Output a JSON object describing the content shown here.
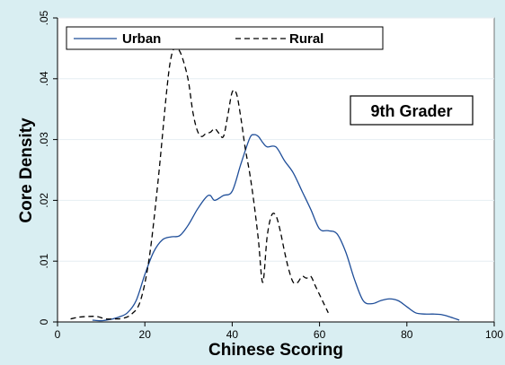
{
  "chart_data": {
    "type": "line",
    "xlabel": "Chinese Scoring",
    "ylabel": "Core Density",
    "xlim": [
      0,
      100
    ],
    "ylim": [
      0,
      0.05
    ],
    "x_ticks": [
      0,
      20,
      40,
      60,
      80,
      100
    ],
    "x_tick_labels": [
      "0",
      "20",
      "40",
      "60",
      "80",
      "100"
    ],
    "y_ticks": [
      0,
      0.01,
      0.02,
      0.03,
      0.04,
      0.05
    ],
    "y_tick_labels": [
      "0",
      ".01",
      ".02",
      ".03",
      ".04",
      ".05"
    ],
    "grid": true,
    "legend_position": "top",
    "annotation": "9th Grader",
    "series": [
      {
        "name": "Urban",
        "style": "solid",
        "color": "#1f4e99",
        "x": [
          8,
          10,
          12,
          14,
          16,
          18,
          20,
          22,
          24,
          26,
          28,
          30,
          32,
          34,
          35,
          36,
          38,
          40,
          42,
          44,
          45,
          46,
          47,
          48,
          50,
          52,
          54,
          56,
          58,
          60,
          62,
          64,
          66,
          68,
          70,
          72,
          74,
          76,
          78,
          80,
          82,
          84,
          86,
          88,
          90,
          92
        ],
        "y": [
          0.0003,
          0.0002,
          0.0004,
          0.0008,
          0.0015,
          0.0035,
          0.0078,
          0.0115,
          0.0135,
          0.014,
          0.0142,
          0.016,
          0.0185,
          0.0205,
          0.0208,
          0.02,
          0.0208,
          0.0215,
          0.026,
          0.0302,
          0.0308,
          0.0305,
          0.0295,
          0.0288,
          0.0288,
          0.0265,
          0.0245,
          0.0215,
          0.0185,
          0.0153,
          0.015,
          0.0145,
          0.0115,
          0.007,
          0.0035,
          0.003,
          0.0035,
          0.0038,
          0.0035,
          0.0025,
          0.0015,
          0.0013,
          0.0013,
          0.0012,
          0.0008,
          0.0003
        ]
      },
      {
        "name": "Rural",
        "style": "dashed",
        "color": "#000000",
        "x": [
          3,
          5,
          7,
          9,
          11,
          13,
          15,
          17,
          19,
          21,
          23,
          25,
          26,
          27,
          28,
          29,
          30,
          31,
          32,
          33,
          34,
          35,
          36,
          37,
          38,
          39,
          40,
          41,
          42,
          43,
          44,
          45,
          46,
          47,
          48,
          49,
          50,
          51,
          52,
          53,
          54,
          55,
          56,
          57,
          58,
          59,
          60,
          61,
          62
        ],
        "y": [
          0.0005,
          0.0008,
          0.0009,
          0.0009,
          0.0005,
          0.0005,
          0.0006,
          0.0013,
          0.0035,
          0.0105,
          0.023,
          0.038,
          0.0435,
          0.0452,
          0.0445,
          0.0425,
          0.0395,
          0.0345,
          0.0315,
          0.0305,
          0.031,
          0.0312,
          0.0318,
          0.031,
          0.0305,
          0.034,
          0.0378,
          0.0375,
          0.0335,
          0.0285,
          0.0245,
          0.0195,
          0.0135,
          0.0065,
          0.014,
          0.0175,
          0.0175,
          0.015,
          0.0115,
          0.0085,
          0.0065,
          0.0065,
          0.0075,
          0.0072,
          0.0075,
          0.006,
          0.0045,
          0.003,
          0.0015
        ]
      }
    ]
  }
}
